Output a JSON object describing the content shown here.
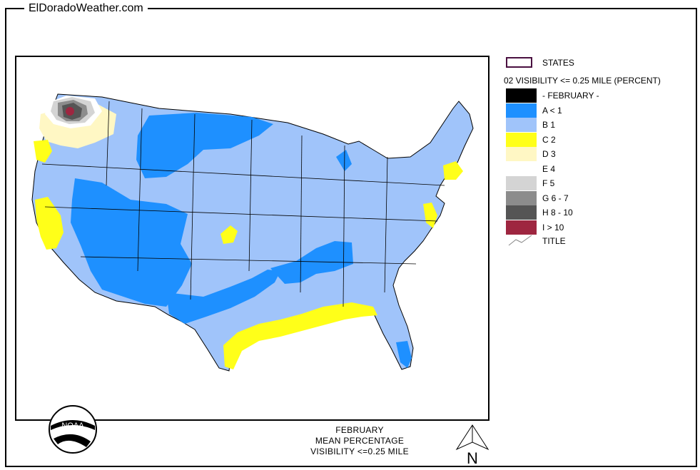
{
  "site": {
    "title": "ElDoradoWeather.com"
  },
  "legend": {
    "states_label": "STATES",
    "heading": "02 VISIBILITY <= 0.25 MILE (PERCENT)",
    "items": [
      {
        "label": "- FEBRUARY -",
        "color": "#000000"
      },
      {
        "label": "A < 1",
        "color": "#1e90ff"
      },
      {
        "label": "B 1",
        "color": "#a0c4fa"
      },
      {
        "label": "C 2",
        "color": "#ffff19"
      },
      {
        "label": "D 3",
        "color": "#fff7c4"
      },
      {
        "label": "E 4",
        "color": "#ffffff"
      },
      {
        "label": "F 5",
        "color": "#d4d4d4"
      },
      {
        "label": "G 6 - 7",
        "color": "#8c8c8c"
      },
      {
        "label": "H 8 - 10",
        "color": "#555555"
      },
      {
        "label": "I > 10",
        "color": "#9e2640"
      }
    ],
    "title_label": "TITLE"
  },
  "map": {
    "caption_line1": "FEBRUARY",
    "caption_line2": "MEAN PERCENTAGE",
    "caption_line3": "VISIBILITY <=0.25 MILE",
    "logo_text": "NOAA",
    "north_label": "N"
  }
}
